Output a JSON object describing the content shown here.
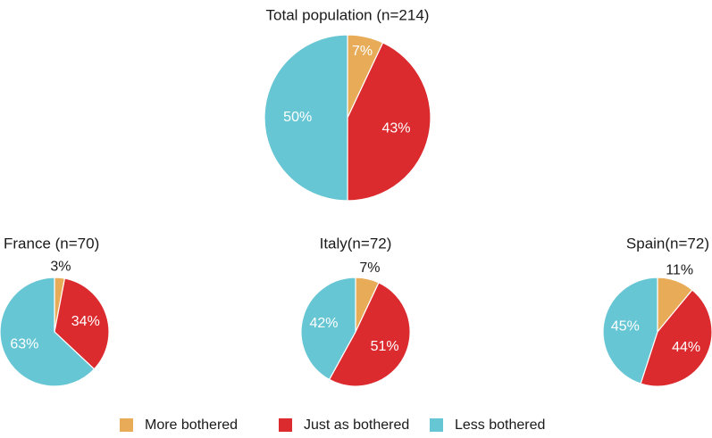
{
  "colors": {
    "More bothered": "#e8ab58",
    "Just as bothered": "#dc2b2f",
    "Less bothered": "#67c6d4"
  },
  "legend": {
    "placement": "bottom",
    "items": [
      {
        "label": "More bothered",
        "color": "#e8ab58"
      },
      {
        "label": "Just as bothered",
        "color": "#dc2b2f"
      },
      {
        "label": "Less bothered",
        "color": "#67c6d4"
      }
    ]
  },
  "chart_data": [
    {
      "type": "pie",
      "title": "Total population (n=214)",
      "slices": [
        {
          "label": "More bothered",
          "value": 7,
          "text": "7%"
        },
        {
          "label": "Just as bothered",
          "value": 43,
          "text": "43%"
        },
        {
          "label": "Less bothered",
          "value": 50,
          "text": "50%"
        }
      ]
    },
    {
      "type": "pie",
      "title": "France (n=70)",
      "slices": [
        {
          "label": "More bothered",
          "value": 3,
          "text": "3%"
        },
        {
          "label": "Just as bothered",
          "value": 34,
          "text": "34%"
        },
        {
          "label": "Less bothered",
          "value": 63,
          "text": "63%"
        }
      ]
    },
    {
      "type": "pie",
      "title": "Italy(n=72)",
      "slices": [
        {
          "label": "More bothered",
          "value": 7,
          "text": "7%"
        },
        {
          "label": "Just as bothered",
          "value": 51,
          "text": "51%"
        },
        {
          "label": "Less bothered",
          "value": 42,
          "text": "42%"
        }
      ]
    },
    {
      "type": "pie",
      "title": "Spain(n=72)",
      "slices": [
        {
          "label": "More bothered",
          "value": 11,
          "text": "11%"
        },
        {
          "label": "Just as bothered",
          "value": 44,
          "text": "44%"
        },
        {
          "label": "Less bothered",
          "value": 45,
          "text": "45%"
        }
      ]
    }
  ]
}
